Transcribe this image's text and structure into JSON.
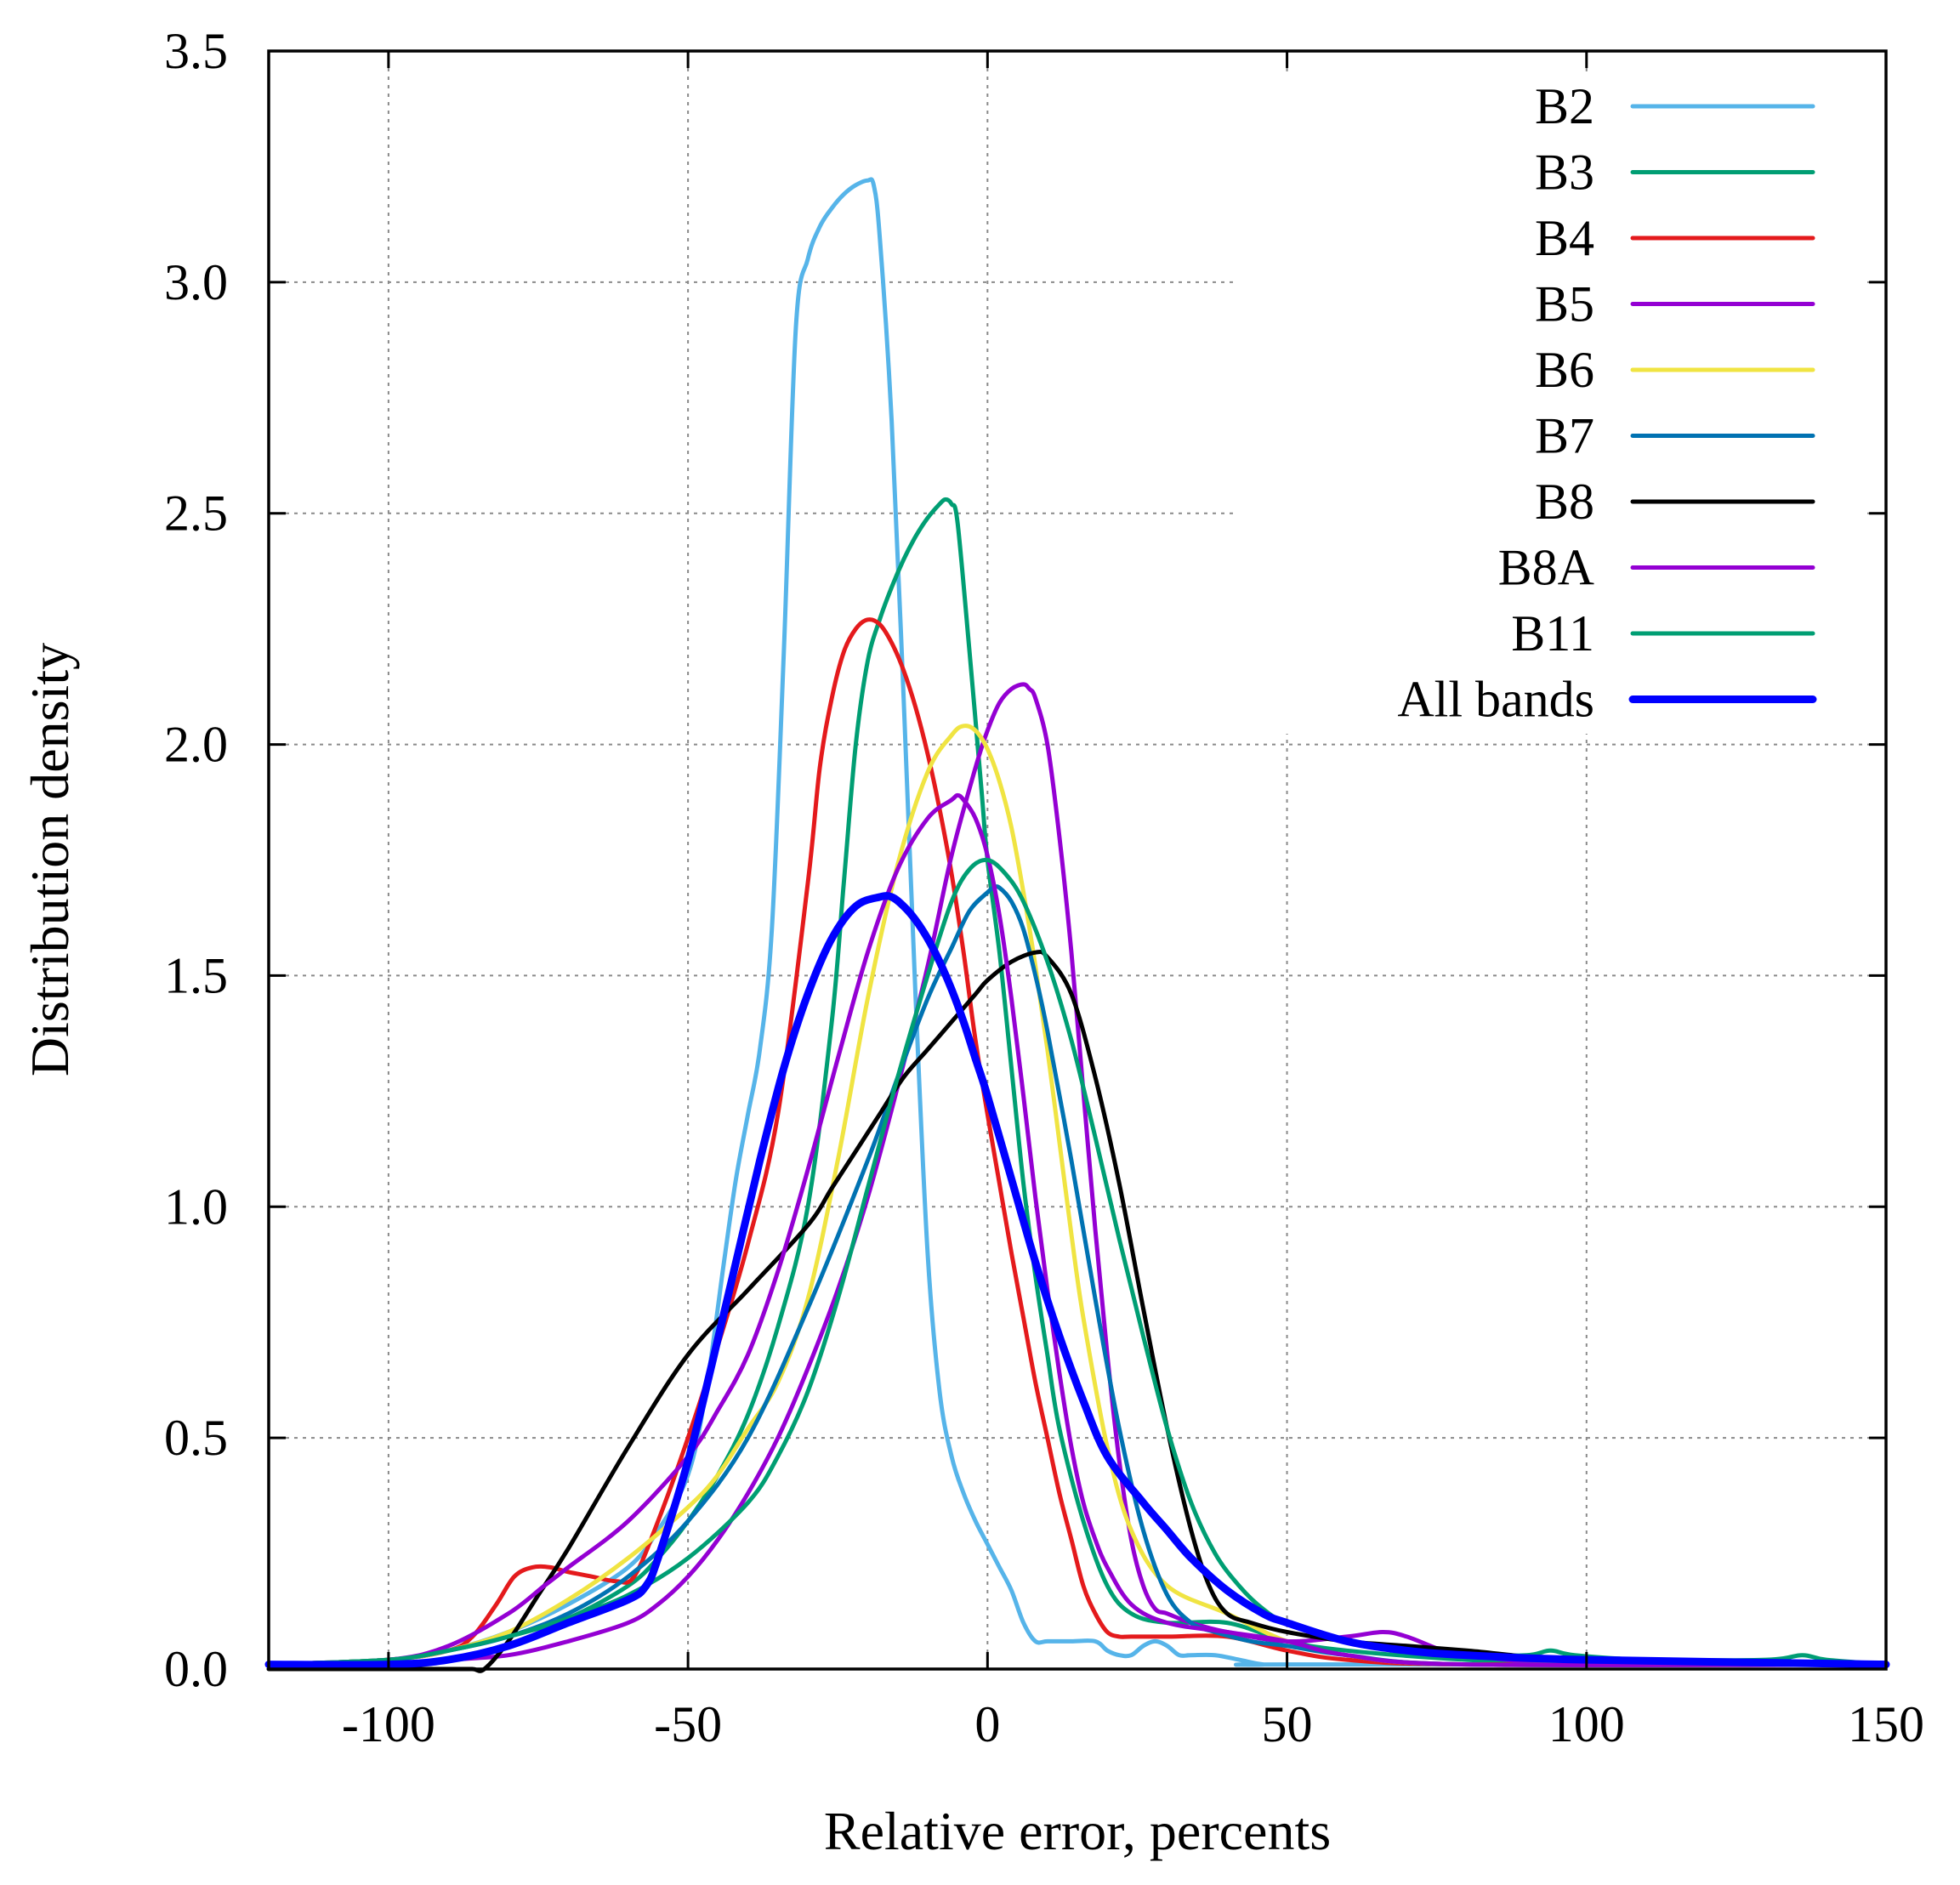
{
  "chart_data": {
    "type": "line",
    "title": "",
    "xlabel": "Relative error, percents",
    "ylabel": "Distribution density",
    "xlim": [
      -120,
      150
    ],
    "ylim": [
      0,
      3.5
    ],
    "xticks": [
      -100,
      -50,
      0,
      50,
      100,
      150
    ],
    "yticks": [
      0.0,
      0.5,
      1.0,
      1.5,
      2.0,
      2.5,
      3.0,
      3.5
    ],
    "xtick_labels": [
      "-100",
      "-50",
      "0",
      "50",
      "100",
      "150"
    ],
    "ytick_labels": [
      "0.0",
      "0.5",
      "1.0",
      "1.5",
      "2.0",
      "2.5",
      "3.0",
      "3.5"
    ],
    "grid": true,
    "legend_position": "top-right",
    "series": [
      {
        "name": "B2",
        "color": "#56b4e9",
        "width": 5,
        "x": [
          -120,
          -100,
          -90,
          -80,
          -70,
          -60,
          -55,
          -50,
          -47,
          -44,
          -42,
          -40,
          -38,
          -36,
          -34,
          -32,
          -30,
          -28,
          -26,
          -24,
          -22,
          -20,
          -19,
          -18,
          -16,
          -14,
          -12,
          -10,
          -8,
          -6,
          -4,
          -2,
          0,
          2,
          4,
          6,
          8,
          10,
          14,
          18,
          20,
          22,
          24,
          26,
          28,
          30,
          32,
          34,
          38,
          42,
          46,
          50,
          150
        ],
        "y": [
          0.01,
          0.02,
          0.04,
          0.08,
          0.14,
          0.22,
          0.3,
          0.42,
          0.6,
          0.88,
          1.06,
          1.2,
          1.34,
          1.6,
          2.2,
          2.9,
          3.05,
          3.12,
          3.16,
          3.19,
          3.21,
          3.22,
          3.21,
          3.1,
          2.7,
          2.1,
          1.45,
          0.9,
          0.6,
          0.46,
          0.38,
          0.32,
          0.27,
          0.22,
          0.17,
          0.1,
          0.06,
          0.06,
          0.06,
          0.06,
          0.04,
          0.03,
          0.03,
          0.05,
          0.06,
          0.05,
          0.03,
          0.03,
          0.03,
          0.02,
          0.01,
          0.01,
          0.01
        ]
      },
      {
        "name": "B3",
        "color": "#009e73",
        "width": 5,
        "x": [
          -120,
          -100,
          -90,
          -80,
          -70,
          -60,
          -55,
          -50,
          -45,
          -40,
          -35,
          -30,
          -26,
          -24,
          -22,
          -20,
          -18,
          -16,
          -14,
          -12,
          -10,
          -8,
          -7,
          -6,
          -5,
          -3,
          -1,
          0,
          2,
          4,
          6,
          8,
          10,
          12,
          16,
          20,
          24,
          30,
          40,
          50,
          60,
          80,
          100,
          150
        ],
        "y": [
          0.01,
          0.02,
          0.04,
          0.07,
          0.11,
          0.18,
          0.24,
          0.32,
          0.42,
          0.55,
          0.74,
          1.0,
          1.4,
          1.7,
          2.0,
          2.18,
          2.27,
          2.34,
          2.4,
          2.45,
          2.49,
          2.52,
          2.53,
          2.52,
          2.48,
          2.2,
          1.9,
          1.75,
          1.55,
          1.3,
          1.05,
          0.85,
          0.68,
          0.52,
          0.32,
          0.18,
          0.12,
          0.1,
          0.1,
          0.06,
          0.04,
          0.02,
          0.01,
          0.01
        ]
      },
      {
        "name": "B4",
        "color": "#e41a1c",
        "width": 5,
        "x": [
          -120,
          -100,
          -90,
          -86,
          -82,
          -79,
          -76,
          -73,
          -70,
          -66,
          -62,
          -59,
          -55,
          -50,
          -45,
          -40,
          -35,
          -30,
          -28,
          -26,
          -24,
          -22,
          -20,
          -18,
          -16,
          -14,
          -12,
          -10,
          -8,
          -6,
          -4,
          -2,
          0,
          2,
          4,
          6,
          8,
          10,
          12,
          14,
          16,
          18,
          20,
          22,
          24,
          30,
          40,
          50,
          60,
          80,
          150
        ],
        "y": [
          0.01,
          0.02,
          0.04,
          0.07,
          0.14,
          0.2,
          0.22,
          0.22,
          0.21,
          0.2,
          0.19,
          0.2,
          0.32,
          0.5,
          0.7,
          0.92,
          1.2,
          1.7,
          1.95,
          2.1,
          2.2,
          2.25,
          2.27,
          2.26,
          2.22,
          2.16,
          2.08,
          1.98,
          1.86,
          1.72,
          1.55,
          1.36,
          1.2,
          1.05,
          0.9,
          0.76,
          0.62,
          0.5,
          0.38,
          0.28,
          0.18,
          0.12,
          0.08,
          0.07,
          0.07,
          0.07,
          0.07,
          0.04,
          0.02,
          0.01,
          0.01
        ]
      },
      {
        "name": "B5",
        "color": "#9400d3",
        "width": 5,
        "x": [
          -120,
          -100,
          -90,
          -80,
          -70,
          -60,
          -55,
          -50,
          -45,
          -40,
          -35,
          -30,
          -25,
          -20,
          -15,
          -10,
          -6,
          -2,
          0,
          2,
          4,
          6,
          7,
          8,
          10,
          12,
          14,
          16,
          18,
          20,
          22,
          24,
          26,
          28,
          30,
          34,
          40,
          50,
          60,
          66,
          70,
          76,
          80,
          100,
          150
        ],
        "y": [
          0.01,
          0.01,
          0.02,
          0.03,
          0.06,
          0.1,
          0.14,
          0.2,
          0.28,
          0.38,
          0.5,
          0.65,
          0.82,
          1.02,
          1.26,
          1.52,
          1.76,
          1.95,
          2.03,
          2.09,
          2.12,
          2.13,
          2.12,
          2.1,
          2.0,
          1.8,
          1.55,
          1.25,
          0.95,
          0.68,
          0.45,
          0.28,
          0.18,
          0.13,
          0.12,
          0.1,
          0.08,
          0.06,
          0.07,
          0.08,
          0.07,
          0.04,
          0.03,
          0.01,
          0.01
        ]
      },
      {
        "name": "B6",
        "color": "#f0e442",
        "width": 5,
        "x": [
          -120,
          -100,
          -90,
          -80,
          -70,
          -60,
          -50,
          -45,
          -40,
          -35,
          -30,
          -25,
          -20,
          -15,
          -10,
          -6,
          -4,
          -2,
          0,
          2,
          4,
          6,
          8,
          10,
          12,
          14,
          16,
          20,
          24,
          30,
          40,
          50,
          60,
          80,
          150
        ],
        "y": [
          0.01,
          0.02,
          0.04,
          0.08,
          0.15,
          0.24,
          0.35,
          0.42,
          0.52,
          0.62,
          0.8,
          1.1,
          1.45,
          1.74,
          1.94,
          2.02,
          2.04,
          2.03,
          1.99,
          1.92,
          1.82,
          1.68,
          1.52,
          1.34,
          1.14,
          0.94,
          0.76,
          0.48,
          0.3,
          0.18,
          0.12,
          0.06,
          0.03,
          0.01,
          0.01
        ]
      },
      {
        "name": "B7",
        "color": "#0072b2",
        "width": 5,
        "x": [
          -120,
          -100,
          -90,
          -80,
          -70,
          -60,
          -50,
          -40,
          -30,
          -20,
          -15,
          -10,
          -6,
          -3,
          0,
          1,
          2,
          4,
          6,
          8,
          10,
          14,
          18,
          22,
          26,
          30,
          34,
          38,
          44,
          50,
          60,
          80,
          150
        ],
        "y": [
          0.01,
          0.02,
          0.04,
          0.07,
          0.12,
          0.2,
          0.32,
          0.5,
          0.78,
          1.1,
          1.28,
          1.45,
          1.56,
          1.64,
          1.68,
          1.69,
          1.69,
          1.66,
          1.6,
          1.5,
          1.38,
          1.1,
          0.8,
          0.52,
          0.3,
          0.16,
          0.1,
          0.08,
          0.06,
          0.05,
          0.03,
          0.01,
          0.01
        ]
      },
      {
        "name": "B8",
        "color": "#000000",
        "width": 5,
        "x": [
          -120,
          -100,
          -90,
          -86,
          -84,
          -80,
          -75,
          -70,
          -60,
          -50,
          -40,
          -30,
          -26,
          -22,
          -18,
          -14,
          -10,
          -6,
          -2,
          0,
          4,
          8,
          10,
          14,
          18,
          22,
          26,
          30,
          34,
          37,
          40,
          44,
          50,
          60,
          70,
          80,
          100,
          150
        ],
        "y": [
          0.0,
          0.0,
          0.0,
          0.0,
          0.0,
          0.06,
          0.16,
          0.26,
          0.48,
          0.68,
          0.82,
          0.96,
          1.04,
          1.12,
          1.2,
          1.28,
          1.34,
          1.4,
          1.46,
          1.49,
          1.53,
          1.55,
          1.54,
          1.46,
          1.28,
          1.05,
          0.78,
          0.52,
          0.3,
          0.18,
          0.12,
          0.1,
          0.08,
          0.06,
          0.05,
          0.04,
          0.02,
          0.01
        ]
      },
      {
        "name": "B8A",
        "color": "#9400d3",
        "width": 5,
        "x": [
          -120,
          -100,
          -90,
          -80,
          -74,
          -70,
          -60,
          -50,
          -45,
          -40,
          -35,
          -30,
          -25,
          -20,
          -15,
          -10,
          -6,
          -5,
          -4,
          -2,
          0,
          2,
          4,
          6,
          8,
          10,
          12,
          14,
          16,
          18,
          20,
          24,
          30,
          40,
          50,
          60,
          80,
          150
        ],
        "y": [
          0.01,
          0.02,
          0.05,
          0.12,
          0.18,
          0.22,
          0.32,
          0.46,
          0.56,
          0.68,
          0.86,
          1.08,
          1.32,
          1.55,
          1.73,
          1.84,
          1.88,
          1.89,
          1.88,
          1.84,
          1.76,
          1.63,
          1.45,
          1.24,
          1.02,
          0.82,
          0.64,
          0.48,
          0.36,
          0.28,
          0.22,
          0.14,
          0.1,
          0.08,
          0.06,
          0.03,
          0.01,
          0.01
        ]
      },
      {
        "name": "B11",
        "color": "#009e73",
        "width": 5,
        "x": [
          -120,
          -100,
          -90,
          -80,
          -70,
          -60,
          -50,
          -40,
          -35,
          -30,
          -25,
          -20,
          -15,
          -10,
          -6,
          -3,
          0,
          3,
          6,
          10,
          14,
          18,
          22,
          26,
          30,
          34,
          38,
          42,
          46,
          50,
          60,
          70,
          80,
          90,
          94,
          98,
          110,
          130,
          136,
          140,
          150
        ],
        "y": [
          0.01,
          0.02,
          0.04,
          0.07,
          0.11,
          0.16,
          0.24,
          0.36,
          0.46,
          0.6,
          0.8,
          1.04,
          1.28,
          1.5,
          1.66,
          1.73,
          1.75,
          1.72,
          1.66,
          1.53,
          1.36,
          1.15,
          0.93,
          0.72,
          0.52,
          0.36,
          0.25,
          0.18,
          0.13,
          0.1,
          0.06,
          0.04,
          0.03,
          0.03,
          0.04,
          0.03,
          0.02,
          0.02,
          0.03,
          0.02,
          0.01
        ]
      },
      {
        "name": "All bands",
        "color": "#0000ff",
        "width": 9,
        "x": [
          -120,
          -100,
          -90,
          -80,
          -70,
          -60,
          -57,
          -55,
          -50,
          -46,
          -42,
          -38,
          -34,
          -30,
          -26,
          -22,
          -18,
          -16,
          -14,
          -12,
          -10,
          -8,
          -6,
          -4,
          -2,
          0,
          4,
          8,
          12,
          16,
          20,
          26,
          30,
          34,
          40,
          46,
          50,
          60,
          70,
          80,
          100,
          150
        ],
        "y": [
          0.01,
          0.01,
          0.02,
          0.05,
          0.1,
          0.15,
          0.18,
          0.24,
          0.45,
          0.66,
          0.88,
          1.1,
          1.3,
          1.46,
          1.58,
          1.65,
          1.67,
          1.67,
          1.65,
          1.62,
          1.58,
          1.53,
          1.47,
          1.4,
          1.32,
          1.24,
          1.06,
          0.88,
          0.72,
          0.58,
          0.46,
          0.36,
          0.3,
          0.24,
          0.17,
          0.12,
          0.1,
          0.06,
          0.04,
          0.03,
          0.02,
          0.01
        ]
      }
    ]
  }
}
